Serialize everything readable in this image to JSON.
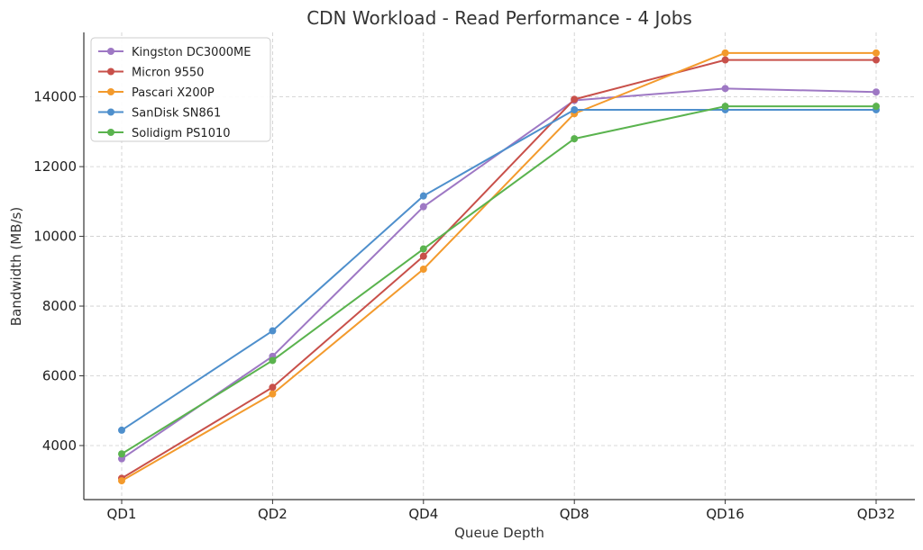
{
  "chart_data": {
    "type": "line",
    "title": "CDN Workload - Read Performance - 4 Jobs",
    "xlabel": "Queue Depth",
    "ylabel": "Bandwidth (MB/s)",
    "categories": [
      "QD1",
      "QD2",
      "QD4",
      "QD8",
      "QD16",
      "QD32"
    ],
    "ylim": [
      2450,
      15850
    ],
    "yticks": [
      4000,
      6000,
      8000,
      10000,
      12000,
      14000
    ],
    "grid": true,
    "legend_position": "top-left",
    "series": [
      {
        "name": "Kingston DC3000ME",
        "color": "#9e78c4",
        "values": [
          3620,
          6560,
          10850,
          13900,
          14240,
          14140
        ]
      },
      {
        "name": "Micron 9550",
        "color": "#c8504a",
        "values": [
          3060,
          5670,
          9430,
          13930,
          15060,
          15060
        ]
      },
      {
        "name": "Pascari X200P",
        "color": "#f39a2c",
        "values": [
          2990,
          5480,
          9060,
          13520,
          15260,
          15260
        ]
      },
      {
        "name": "SanDisk SN861",
        "color": "#4e8fcc",
        "values": [
          4440,
          7290,
          11160,
          13630,
          13630,
          13630
        ]
      },
      {
        "name": "Solidigm PS1010",
        "color": "#5ab34e",
        "values": [
          3760,
          6440,
          9640,
          12800,
          13730,
          13730
        ]
      }
    ]
  }
}
